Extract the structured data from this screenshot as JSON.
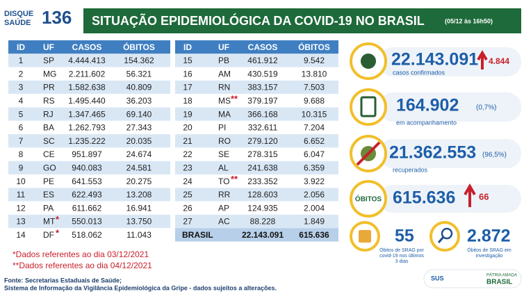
{
  "logo": {
    "line1": "DISQUE",
    "line2": "SAÚDE",
    "number": "136"
  },
  "header": {
    "title": "SITUAÇÃO EPIDEMIOLÓGICA DA COVID-19 NO BRASIL",
    "date": "(05/12 às 16h50)"
  },
  "table": {
    "columns": [
      "ID",
      "UF",
      "CASOS",
      "ÓBITOS"
    ],
    "left": [
      {
        "id": "1",
        "uf": "SP",
        "casos": "4.444.413",
        "obitos": "154.362"
      },
      {
        "id": "2",
        "uf": "MG",
        "casos": "2.211.602",
        "obitos": "56.321"
      },
      {
        "id": "3",
        "uf": "PR",
        "casos": "1.582.638",
        "obitos": "40.809"
      },
      {
        "id": "4",
        "uf": "RS",
        "casos": "1.495.440",
        "obitos": "36.203"
      },
      {
        "id": "5",
        "uf": "RJ",
        "casos": "1.347.465",
        "obitos": "69.140"
      },
      {
        "id": "6",
        "uf": "BA",
        "casos": "1.262.793",
        "obitos": "27.343"
      },
      {
        "id": "7",
        "uf": "SC",
        "casos": "1.235.222",
        "obitos": "20.035"
      },
      {
        "id": "8",
        "uf": "CE",
        "casos": "951.897",
        "obitos": "24.674"
      },
      {
        "id": "9",
        "uf": "GO",
        "casos": "940.083",
        "obitos": "24.581"
      },
      {
        "id": "10",
        "uf": "PE",
        "casos": "641.553",
        "obitos": "20.275"
      },
      {
        "id": "11",
        "uf": "ES",
        "casos": "622.493",
        "obitos": "13.208"
      },
      {
        "id": "12",
        "uf": "PA",
        "casos": "611.662",
        "obitos": "16.941"
      },
      {
        "id": "13",
        "uf": "MT",
        "note": "*",
        "casos": "550.013",
        "obitos": "13.750"
      },
      {
        "id": "14",
        "uf": "DF",
        "note": "*",
        "casos": "518.062",
        "obitos": "11.043"
      }
    ],
    "right": [
      {
        "id": "15",
        "uf": "PB",
        "casos": "461.912",
        "obitos": "9.542"
      },
      {
        "id": "16",
        "uf": "AM",
        "casos": "430.519",
        "obitos": "13.810"
      },
      {
        "id": "17",
        "uf": "RN",
        "casos": "383.157",
        "obitos": "7.503"
      },
      {
        "id": "18",
        "uf": "MS",
        "note": "**",
        "casos": "379.197",
        "obitos": "9.688"
      },
      {
        "id": "19",
        "uf": "MA",
        "casos": "366.168",
        "obitos": "10.315"
      },
      {
        "id": "20",
        "uf": "PI",
        "casos": "332.611",
        "obitos": "7.204"
      },
      {
        "id": "21",
        "uf": "RO",
        "casos": "279.120",
        "obitos": "6.652"
      },
      {
        "id": "22",
        "uf": "SE",
        "casos": "278.315",
        "obitos": "6.047"
      },
      {
        "id": "23",
        "uf": "AL",
        "casos": "241.638",
        "obitos": "6.359"
      },
      {
        "id": "24",
        "uf": "TO",
        "note": "**",
        "casos": "233.352",
        "obitos": "3.922"
      },
      {
        "id": "25",
        "uf": "RR",
        "casos": "128.603",
        "obitos": "2.056"
      },
      {
        "id": "26",
        "uf": "AP",
        "casos": "124.935",
        "obitos": "2.004"
      },
      {
        "id": "27",
        "uf": "AC",
        "casos": "88.228",
        "obitos": "1.849"
      }
    ],
    "total": {
      "label": "BRASIL",
      "casos": "22.143.091",
      "obitos": "615.636"
    }
  },
  "stats": {
    "confirmed": {
      "value": "22.143.091",
      "change": "4.844",
      "label": "casos confirmados"
    },
    "monitoring": {
      "value": "164.902",
      "percent": "(0,7%)",
      "label": "em acompanhamento"
    },
    "recovered": {
      "value": "21.362.553",
      "percent": "(96,5%)",
      "label": "recuperados"
    },
    "deaths": {
      "badge": "ÓBITOS",
      "value": "615.636",
      "change": "66"
    },
    "srag": {
      "value": "55",
      "label": [
        "Óbitos de SRAG por",
        "covid-19 nos últimos",
        "3 dias"
      ]
    },
    "investigation": {
      "value": "2.872",
      "label": [
        "Óbitos de SRAG em",
        "investigação"
      ]
    }
  },
  "footnotes": [
    "*Dados referentes ao dia 03/12/2021",
    "**Dados referentes ao dia 04/12/2021"
  ],
  "source": [
    "Fonte: Secretarias Estaduais de Saúde;",
    "Sistema de Informação da Vigilância Epidemiológica da Gripe - dados sujeitos a alterações."
  ],
  "footer_logos": {
    "sus": "SUS",
    "slogan": "PÁTRIA AMADA",
    "country": "BRASIL"
  }
}
